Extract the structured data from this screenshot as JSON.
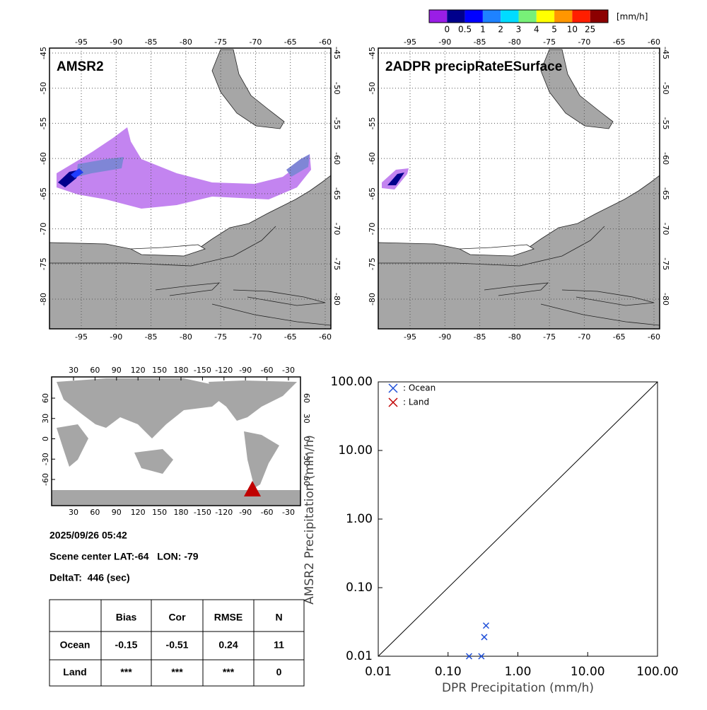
{
  "colorbar": {
    "unit": "[mm/h]",
    "labels": [
      "0",
      "0.5",
      "1",
      "2",
      "3",
      "4",
      "5",
      "10",
      "25"
    ],
    "colors": [
      "#9a1ee6",
      "#00008c",
      "#0000ff",
      "#1e82ff",
      "#00dcff",
      "#78f078",
      "#ffff00",
      "#ff9600",
      "#ff1e00",
      "#8c0000"
    ]
  },
  "maps": [
    {
      "title": "AMSR2",
      "xticks": [
        -95,
        -90,
        -85,
        -80,
        -75,
        -70,
        -65,
        -60
      ],
      "yticks": [
        -45,
        -50,
        -55,
        -60,
        -65,
        -70,
        -75,
        -80
      ]
    },
    {
      "title": "2ADPR precipRateESurface",
      "xticks": [
        -95,
        -90,
        -85,
        -80,
        -75,
        -70,
        -65,
        -60
      ],
      "yticks": [
        -45,
        -50,
        -55,
        -60,
        -65,
        -70,
        -75,
        -80
      ]
    }
  ],
  "world_map": {
    "xticks": [
      30,
      60,
      90,
      120,
      150,
      180,
      -150,
      -120,
      -90,
      -60,
      -30
    ],
    "yticks": [
      60,
      30,
      0,
      -30,
      -60
    ]
  },
  "info": {
    "datetime": "2025/09/26 05:42",
    "scene_center": "Scene center LAT:-64   LON: -79",
    "delta_t": "DeltaT:  446 (sec)"
  },
  "table": {
    "columns": [
      "Bias",
      "Cor",
      "RMSE",
      "N"
    ],
    "rows": [
      {
        "label": "Ocean",
        "cells": [
          "-0.15",
          "-0.51",
          "0.24",
          "11"
        ]
      },
      {
        "label": "Land",
        "cells": [
          "***",
          "***",
          "***",
          "0"
        ]
      }
    ]
  },
  "chart_data": {
    "type": "scatter",
    "xlabel": "DPR Precipitation (mm/h)",
    "ylabel": "AMSR2 Precipitation (mm/h)",
    "xscale": "log",
    "yscale": "log",
    "xlim": [
      0.01,
      100
    ],
    "ylim": [
      0.01,
      100
    ],
    "xticks": [
      0.01,
      {
        "value": 0.1,
        "label": "0.10"
      },
      {
        "value": 1,
        "label": "1.00"
      },
      {
        "value": 10,
        "label": "10.00"
      },
      {
        "value": 100,
        "label": "100.00"
      }
    ],
    "yticks": [
      0.01,
      {
        "value": 0.1,
        "label": "0.10"
      },
      {
        "value": 1,
        "label": "1.00"
      },
      {
        "value": 10,
        "label": "10.00"
      },
      {
        "value": 100,
        "label": "100.00"
      }
    ],
    "legend": "upper left",
    "series": [
      {
        "name": ": Ocean",
        "color": "#1f4fd8",
        "x": [
          0.2,
          0.3,
          0.33,
          0.35
        ],
        "values": [
          0.01,
          0.01,
          0.019,
          0.028
        ]
      },
      {
        "name": ": Land",
        "color": "#c00000",
        "x": [],
        "values": []
      }
    ]
  }
}
